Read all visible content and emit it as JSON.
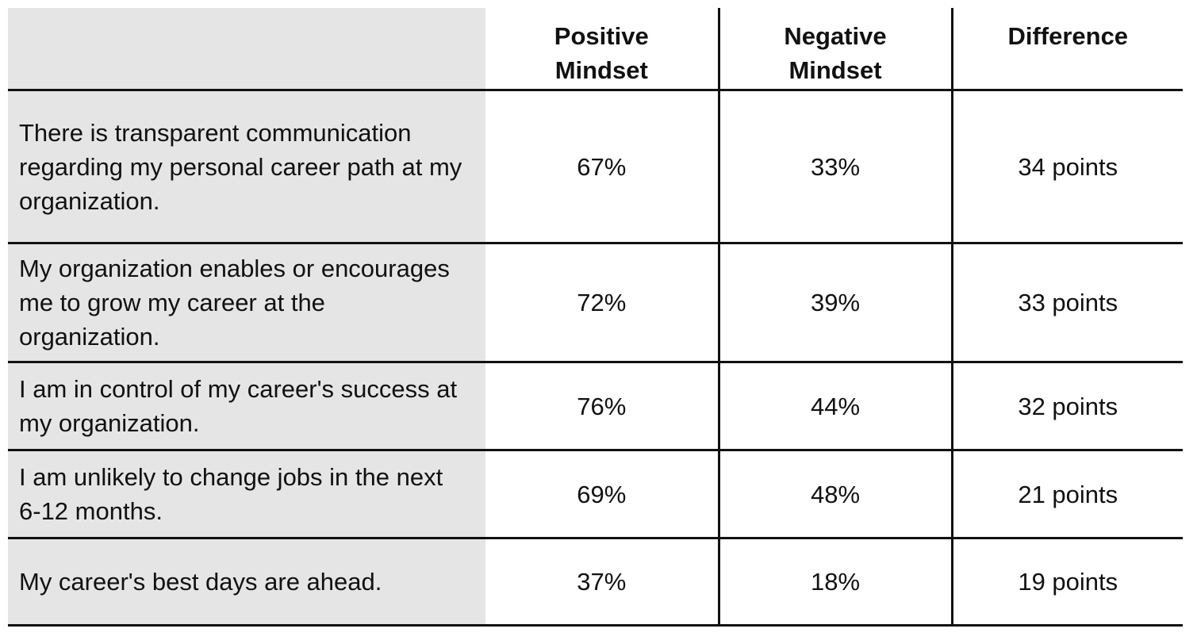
{
  "table": {
    "header": [
      "Positive Mindset",
      "Negative Mindset",
      "Difference"
    ],
    "rows": [
      [
        "There is transparent communication regarding my personal career path at my organization.",
        "67%",
        "33%",
        "34 points"
      ],
      [
        "My organization enables or encourages me to grow my career at the organization.",
        "72%",
        "39%",
        "33 points"
      ],
      [
        "I am in control of my career's success at my organization.",
        "76%",
        "44%",
        "32 points"
      ],
      [
        "I am unlikely to change jobs in the next 6-12 months.",
        "69%",
        "48%",
        "21 points"
      ],
      [
        "My career's best days are ahead.",
        "37%",
        "18%",
        "19 points"
      ]
    ]
  }
}
